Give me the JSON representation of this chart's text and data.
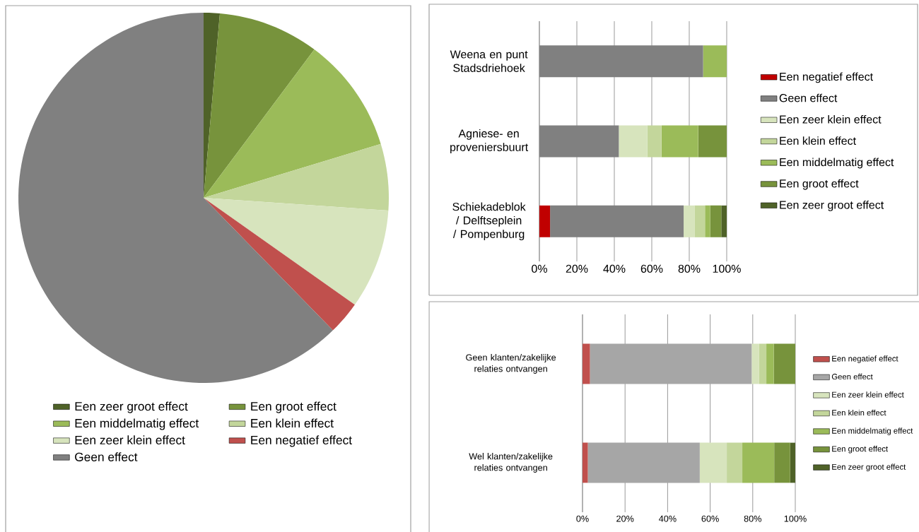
{
  "chart_data": [
    {
      "type": "pie",
      "categories": [
        "Een zeer groot effect",
        "Een groot effect",
        "Een middelmatig effect",
        "Een klein effect",
        "Een zeer klein effect",
        "Een negatief effect",
        "Geen effect"
      ],
      "values": [
        1.4,
        8.8,
        10.1,
        5.8,
        8.7,
        2.9,
        62.3
      ],
      "colors": [
        "#4f6228",
        "#77933c",
        "#9bbb59",
        "#c3d69b",
        "#d7e4bd",
        "#c0504d",
        "#808080"
      ],
      "legend": "bottom"
    },
    {
      "type": "bar",
      "orientation": "horizontal",
      "stacked": true,
      "categories": [
        "Weena en punt Stadsdriehoek",
        "Agniese- en proveniersbuurt",
        "Schiekadeblok / Delftseplein / Pompenburg"
      ],
      "series": [
        {
          "name": "Een negatief effect",
          "color": "#c00000",
          "values": [
            0,
            0,
            5.7
          ]
        },
        {
          "name": "Geen effect",
          "color": "#808080",
          "values": [
            87.4,
            42.4,
            71.3
          ]
        },
        {
          "name": "Een zeer klein effect",
          "color": "#d7e4bd",
          "values": [
            0,
            15.2,
            5.8
          ]
        },
        {
          "name": "Een klein effect",
          "color": "#c3d69b",
          "values": [
            0,
            7.6,
            5.6
          ]
        },
        {
          "name": "Een middelmatig effect",
          "color": "#9bbb59",
          "values": [
            12.6,
            19.6,
            2.8
          ]
        },
        {
          "name": "Een groot effect",
          "color": "#77933c",
          "values": [
            0,
            15.2,
            5.9
          ]
        },
        {
          "name": "Een zeer groot effect",
          "color": "#4f6228",
          "values": [
            0,
            0,
            2.9
          ]
        }
      ],
      "xlim": [
        0,
        100
      ],
      "xticks": [
        {
          "value": 0,
          "label": "0%"
        },
        {
          "value": 20,
          "label": "20%"
        },
        {
          "value": 40,
          "label": "40%"
        },
        {
          "value": 60,
          "label": "60%"
        },
        {
          "value": 80,
          "label": "80%"
        },
        {
          "value": 100,
          "label": "100%"
        }
      ],
      "grid": "x",
      "legend": "right"
    },
    {
      "type": "bar",
      "orientation": "horizontal",
      "stacked": true,
      "categories": [
        "Geen klanten/zakelijke relaties ontvangen",
        "Wel klanten/zakelijke relaties ontvangen"
      ],
      "series": [
        {
          "name": "Een negatief effect",
          "color": "#c0504d",
          "values": [
            3.5,
            2.5
          ]
        },
        {
          "name": "Geen effect",
          "color": "#a6a6a6",
          "values": [
            76.0,
            52.6
          ]
        },
        {
          "name": "Een zeer klein effect",
          "color": "#d7e4bd",
          "values": [
            3.5,
            12.7
          ]
        },
        {
          "name": "Een klein effect",
          "color": "#c3d69b",
          "values": [
            3.4,
            7.3
          ]
        },
        {
          "name": "Een middelmatig effect",
          "color": "#9bbb59",
          "values": [
            3.5,
            15.0
          ]
        },
        {
          "name": "Een groot effect",
          "color": "#77933c",
          "values": [
            10.1,
            7.5
          ]
        },
        {
          "name": "Een zeer groot effect",
          "color": "#4f6228",
          "values": [
            0,
            2.4
          ]
        }
      ],
      "xlim": [
        0,
        100
      ],
      "xticks": [
        {
          "value": 0,
          "label": "0%"
        },
        {
          "value": 20,
          "label": "20%"
        },
        {
          "value": 40,
          "label": "40%"
        },
        {
          "value": 60,
          "label": "60%"
        },
        {
          "value": 80,
          "label": "80%"
        },
        {
          "value": 100,
          "label": "100%"
        }
      ],
      "grid": "x",
      "legend": "right"
    }
  ]
}
